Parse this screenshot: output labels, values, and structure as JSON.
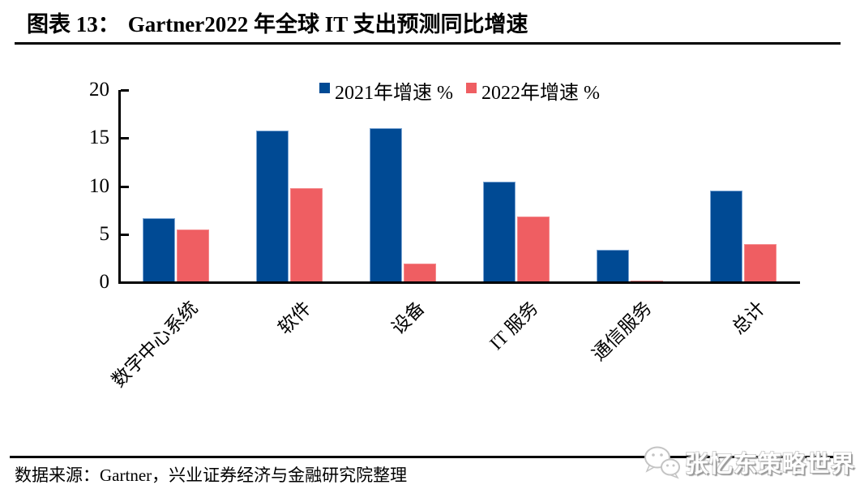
{
  "header": {
    "figure_label": "图表 13：",
    "title": "Gartner2022 年全球 IT 支出预测同比增速"
  },
  "chart_data": {
    "type": "bar",
    "title": "Gartner2022 年全球 IT 支出预测同比增速",
    "categories": [
      "数字中心系统",
      "软件",
      "设备",
      "IT 服务",
      "通信服务",
      "总计"
    ],
    "series": [
      {
        "name": "2021年增速 %",
        "color": "#004a94",
        "edge_color": "#7ca6d4",
        "values": [
          6.7,
          15.8,
          16.0,
          10.5,
          3.4,
          9.5
        ]
      },
      {
        "name": "2022年增速 %",
        "color": "#ef5e62",
        "edge_color": "#f4898c",
        "values": [
          5.5,
          9.8,
          1.9,
          6.8,
          0.2,
          4.0
        ]
      }
    ],
    "ylim": [
      0,
      20
    ],
    "yticks": [
      0,
      5,
      10,
      15,
      20
    ],
    "grid": false,
    "legend_position": "top-center",
    "axis_color": "#000000"
  },
  "footer": {
    "source": "数据来源：Gartner，兴业证券经济与金融研究院整理"
  },
  "watermark": {
    "text": "张忆东策略世界",
    "icon": "wechat-chat-bubbles-icon"
  }
}
